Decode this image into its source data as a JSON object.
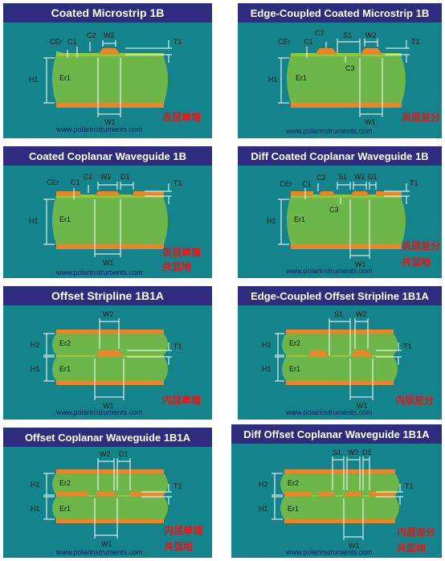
{
  "panels": [
    {
      "title": "Coated Microstrip 1B",
      "labels": [
        "CEr",
        "C1",
        "C2",
        "W2",
        "T1",
        "H1",
        "Er1",
        "W1"
      ],
      "url": "www.polarinstruments.com",
      "cn": [
        "表层单端"
      ]
    },
    {
      "title": "Edge-Coupled Coated Microstrip 1B",
      "labels": [
        "CEr",
        "C1",
        "C2",
        "S1",
        "W2",
        "T1",
        "H1",
        "Er1",
        "C3",
        "W1"
      ],
      "url": "www.polarinstruments.com",
      "cn": [
        "表层差分"
      ]
    },
    {
      "title": "Coated Coplanar Waveguide 1B",
      "labels": [
        "CEr",
        "C1",
        "C2",
        "W2",
        "D1",
        "T1",
        "H1",
        "Er1",
        "W1"
      ],
      "url": "www.polarinstruments.com",
      "cn": [
        "表层单端",
        "共面地"
      ]
    },
    {
      "title": "Diff Coated Coplanar Waveguide 1B",
      "labels": [
        "CEr",
        "C1",
        "C2",
        "S1",
        "W2",
        "D1",
        "T1",
        "H1",
        "Er1",
        "C3",
        "W1"
      ],
      "url": "www.polarinstruments.com",
      "cn": [
        "表层差分",
        "共面地"
      ]
    },
    {
      "title": "Offset Stripline 1B1A",
      "labels": [
        "W2",
        "H2",
        "Er2",
        "T1",
        "H1",
        "Er1",
        "W1"
      ],
      "url": "www.polarinstruments.com",
      "cn": [
        "内层单端"
      ]
    },
    {
      "title": "Edge-Coupled Offset Stripline 1B1A",
      "labels": [
        "S1",
        "W2",
        "H2",
        "Er2",
        "T1",
        "H1",
        "Er1",
        "W1"
      ],
      "url": "www.polarinstruments.com",
      "cn": [
        "内层差分"
      ]
    },
    {
      "title": "Offset Coplanar Waveguide 1B1A",
      "labels": [
        "W2",
        "D1",
        "H2",
        "Er2",
        "T1",
        "H1",
        "Er1",
        "W1"
      ],
      "url": "www.polarinstruments.com",
      "cn": [
        "内层单端",
        "共面地"
      ]
    },
    {
      "title": "Diff Offset Coplanar Waveguide 1B1A",
      "labels": [
        "S1",
        "W2",
        "D1",
        "H2",
        "Er2",
        "T1",
        "H1",
        "Er1",
        "W1"
      ],
      "url": "www.polarinstruments.com",
      "cn": [
        "内层差分",
        "共面地"
      ]
    }
  ],
  "colors": {
    "title_bg": "#2f2c7f",
    "title_text": "#ffffff",
    "panel_bg": "#14848c",
    "dielectric": "#6cb64a",
    "copper": "#e8862a",
    "coating": "#93c83e",
    "dimension": "#ffffff",
    "label_text": "#111111",
    "url_text": "#101070",
    "cn_text": "#e11919"
  }
}
